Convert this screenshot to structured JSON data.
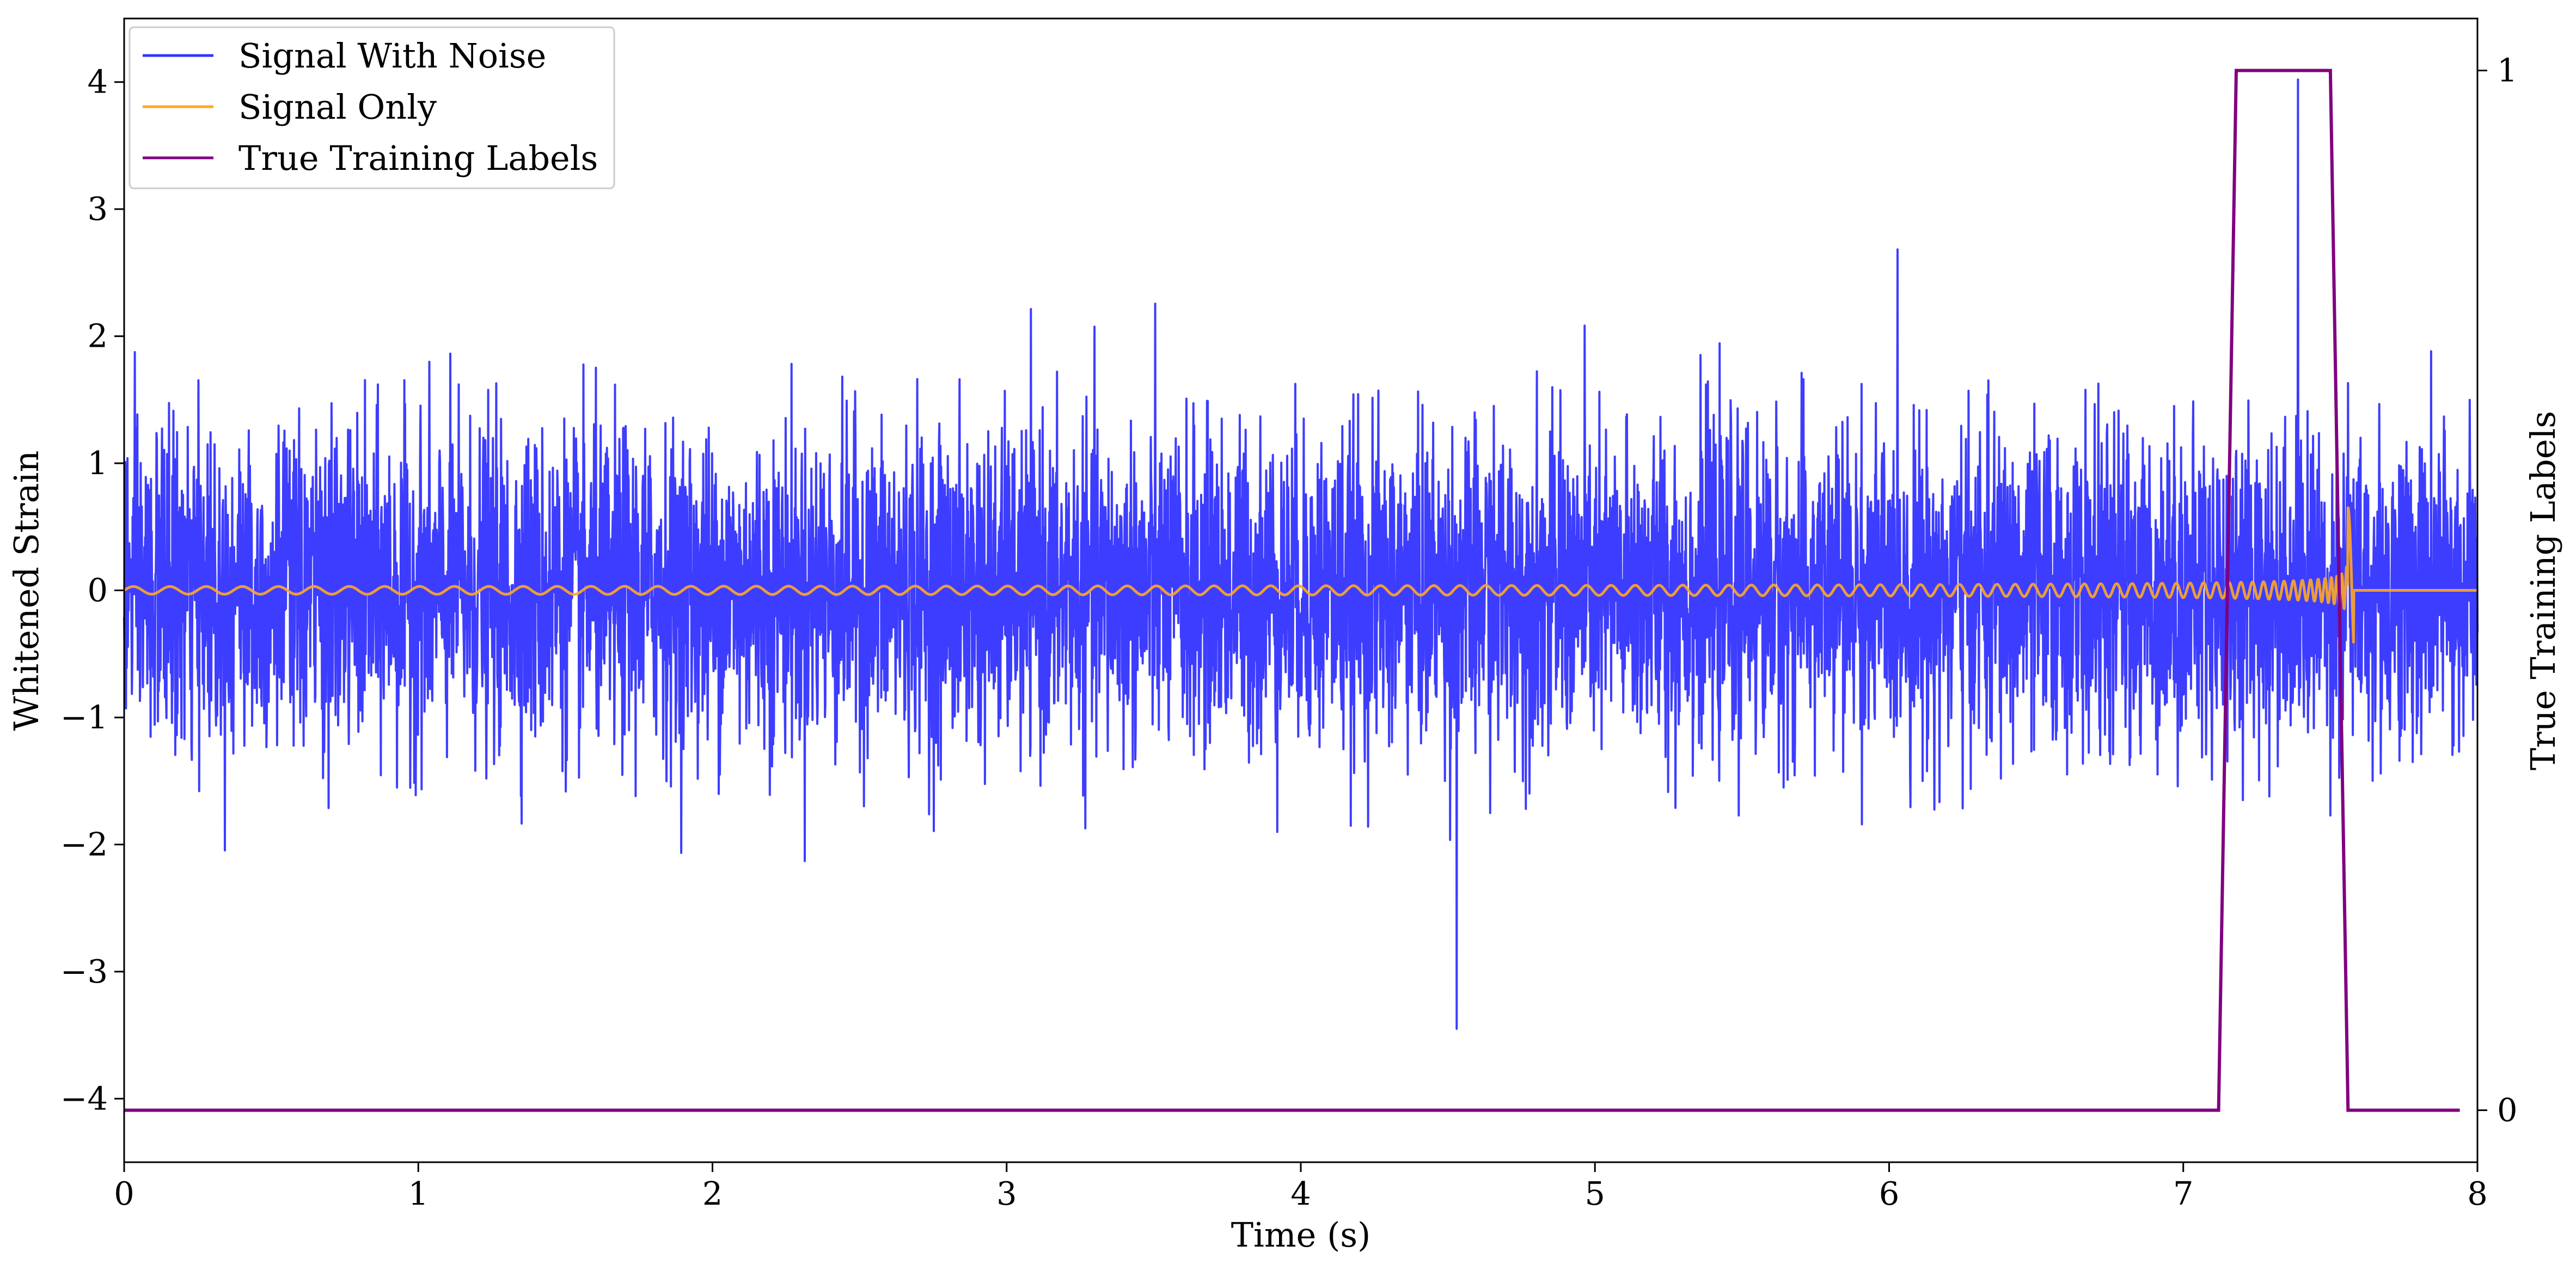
{
  "chart_data": {
    "type": "line",
    "title": "",
    "xlabel": "Time (s)",
    "ylabel": "Whitened Strain",
    "y2label": "True Training Labels",
    "xlim": [
      0,
      8
    ],
    "ylim": [
      -4.5,
      4.5
    ],
    "y2lim": [
      -0.05,
      1.05
    ],
    "x_ticks": [
      0,
      1,
      2,
      3,
      4,
      5,
      6,
      7,
      8
    ],
    "x_tick_labels": [
      "0",
      "1",
      "2",
      "3",
      "4",
      "5",
      "6",
      "7",
      "8"
    ],
    "y_ticks": [
      -4,
      -3,
      -2,
      -1,
      0,
      1,
      2,
      3,
      4
    ],
    "y_tick_labels": [
      "−4",
      "−3",
      "−2",
      "−1",
      "0",
      "1",
      "2",
      "3",
      "4"
    ],
    "y2_ticks": [
      0,
      1
    ],
    "y2_tick_labels": [
      "0",
      "1"
    ],
    "grid": false,
    "legend_position": "top-left",
    "series": [
      {
        "name": "Signal With Noise",
        "color": "#3333ff",
        "axis": "left",
        "description_values": {
          "mean": 0,
          "typical_range": [
            -2.0,
            2.0
          ],
          "extremes": [
            -3.45,
            4.02
          ],
          "extreme_max_at_s": 7.39,
          "extreme_min_at_s": 4.53
        }
      },
      {
        "name": "Signal Only",
        "color": "#ffa726",
        "axis": "left",
        "chirp": {
          "start_s": 0.0,
          "merger_s": 7.56,
          "start_freq_hz": 8,
          "end_freq_hz": 60,
          "start_amplitude": 0.03,
          "peak_amplitude": 1.3
        }
      },
      {
        "name": "True Training Labels",
        "color": "#800080",
        "axis": "right",
        "x": [
          0.0,
          7.12,
          7.18,
          7.5,
          7.56,
          7.94
        ],
        "values": [
          0,
          0,
          1,
          1,
          0,
          0
        ]
      }
    ]
  }
}
